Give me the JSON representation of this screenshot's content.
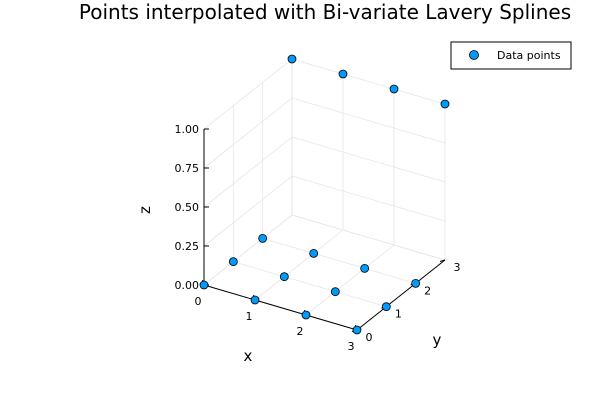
{
  "chart_data": {
    "type": "scatter",
    "title": "Points interpolated with Bi-variate Lavery Splines",
    "xlabel": "x",
    "ylabel": "y",
    "zlabel": "z",
    "xlim": [
      0,
      3
    ],
    "ylim": [
      0,
      3
    ],
    "zlim": [
      0,
      1
    ],
    "x_ticks": [
      "0",
      "1",
      "2",
      "3"
    ],
    "y_ticks": [
      "0",
      "1",
      "2",
      "3"
    ],
    "z_ticks": [
      "0.00",
      "0.25",
      "0.50",
      "0.75",
      "1.00"
    ],
    "z_tick_values": [
      0,
      0.25,
      0.5,
      0.75,
      1.0
    ],
    "grid": true,
    "projection": "3d",
    "legend_position": "top-right",
    "marker_color": "#009AFA",
    "series": [
      {
        "name": "Data points",
        "points": [
          {
            "x": 0,
            "y": 0,
            "z": 0
          },
          {
            "x": 0,
            "y": 1,
            "z": 0
          },
          {
            "x": 0,
            "y": 2,
            "z": 0
          },
          {
            "x": 0,
            "y": 3,
            "z": 1
          },
          {
            "x": 1,
            "y": 0,
            "z": 0
          },
          {
            "x": 1,
            "y": 1,
            "z": 0
          },
          {
            "x": 1,
            "y": 2,
            "z": 0
          },
          {
            "x": 1,
            "y": 3,
            "z": 1
          },
          {
            "x": 2,
            "y": 0,
            "z": 0
          },
          {
            "x": 2,
            "y": 1,
            "z": 0
          },
          {
            "x": 2,
            "y": 2,
            "z": 0
          },
          {
            "x": 2,
            "y": 3,
            "z": 1
          },
          {
            "x": 3,
            "y": 0,
            "z": 0
          },
          {
            "x": 3,
            "y": 1,
            "z": 0
          },
          {
            "x": 3,
            "y": 2,
            "z": 0
          },
          {
            "x": 3,
            "y": 3,
            "z": 1
          }
        ]
      }
    ]
  }
}
